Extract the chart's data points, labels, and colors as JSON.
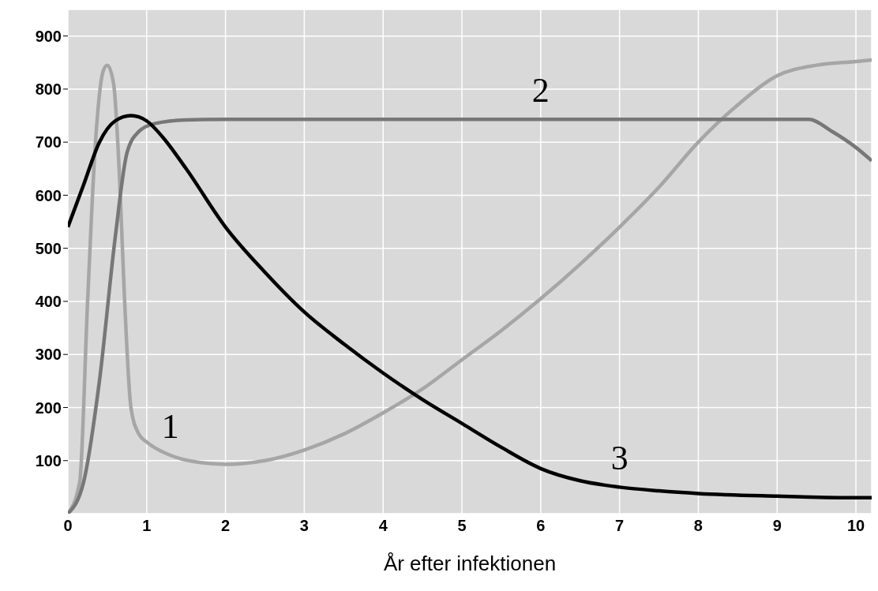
{
  "chart_data": {
    "type": "line",
    "xlabel": "År efter infektionen",
    "xlim": [
      0,
      10.2
    ],
    "xticks": [
      0,
      1,
      2,
      3,
      4,
      5,
      6,
      7,
      8,
      9,
      10
    ],
    "ylim": [
      0,
      950
    ],
    "yticks": [
      100,
      200,
      300,
      400,
      500,
      600,
      700,
      800,
      900
    ],
    "grid": true,
    "marker": "none",
    "line_style": "solid",
    "series": [
      {
        "color": "#a6a6a6",
        "x": [
          0,
          0.15,
          0.25,
          0.35,
          0.45,
          0.5,
          0.58,
          0.65,
          0.72,
          0.8,
          0.9,
          1,
          1.3,
          1.6,
          2,
          2.5,
          3,
          3.5,
          4,
          4.5,
          5,
          5.5,
          6,
          6.5,
          7,
          7.5,
          8,
          8.5,
          9,
          9.5,
          10,
          10.2
        ],
        "values": [
          0,
          60,
          400,
          700,
          835,
          845,
          810,
          650,
          400,
          200,
          150,
          135,
          110,
          98,
          93,
          100,
          120,
          150,
          190,
          235,
          290,
          345,
          405,
          470,
          540,
          615,
          700,
          770,
          825,
          845,
          852,
          855
        ]
      },
      {
        "color": "#777777",
        "x": [
          0,
          0.2,
          0.4,
          0.6,
          0.75,
          0.9,
          1.1,
          1.5,
          2,
          4,
          6,
          8,
          9.4,
          9.7,
          10,
          10.2
        ],
        "values": [
          0,
          60,
          250,
          520,
          680,
          720,
          735,
          742,
          743,
          743,
          743,
          743,
          743,
          720,
          690,
          665
        ]
      },
      {
        "color": "#000000",
        "x": [
          0,
          0.2,
          0.4,
          0.6,
          0.8,
          1,
          1.2,
          1.5,
          2,
          2.5,
          3,
          3.5,
          4,
          4.5,
          5,
          5.5,
          6,
          6.5,
          7,
          7.5,
          8,
          9,
          10,
          10.2
        ],
        "values": [
          540,
          620,
          700,
          740,
          750,
          740,
          710,
          650,
          540,
          455,
          380,
          320,
          265,
          215,
          170,
          125,
          85,
          62,
          50,
          43,
          38,
          33,
          30,
          30
        ]
      }
    ],
    "annotations": [
      {
        "text": "1",
        "x": 1.3,
        "y": 110
      },
      {
        "text": "2",
        "x": 6,
        "y": 743
      },
      {
        "text": "3",
        "x": 7,
        "y": 50
      }
    ]
  }
}
